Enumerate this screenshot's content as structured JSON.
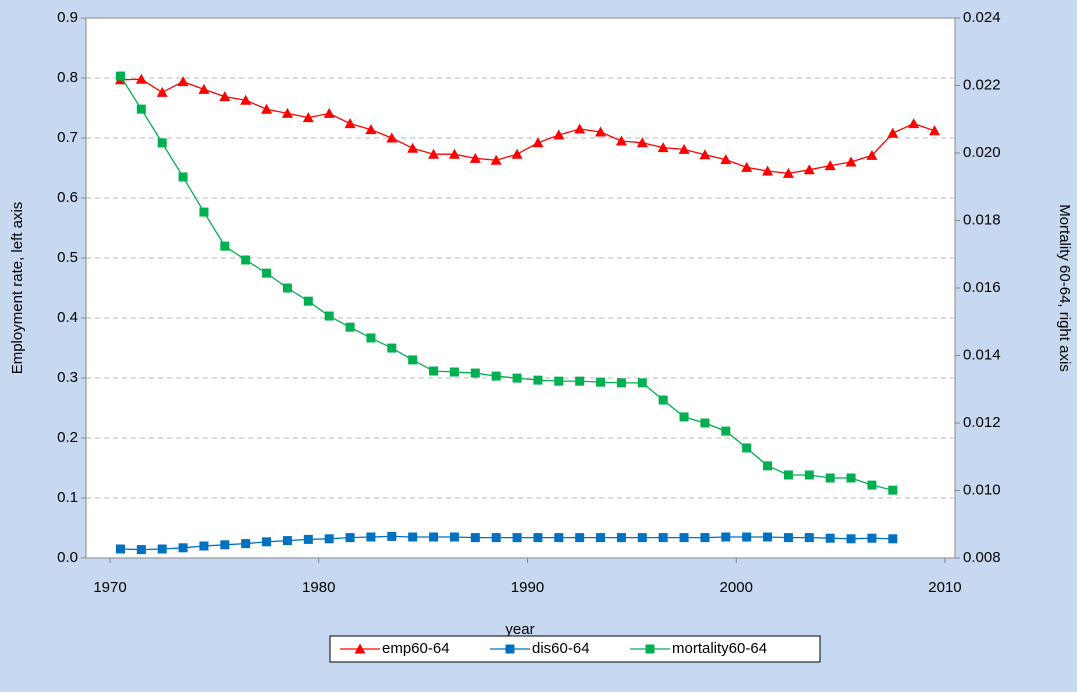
{
  "chart_data": {
    "type": "line",
    "xlabel": "year",
    "ylabel": "Employment rate, left axis",
    "y2label": "Mortality 60-64, right axis",
    "x": [
      1970.5,
      1971.5,
      1972.5,
      1973.5,
      1974.5,
      1975.5,
      1976.5,
      1977.5,
      1978.5,
      1979.5,
      1980.5,
      1981.5,
      1982.5,
      1983.5,
      1984.5,
      1985.5,
      1986.5,
      1987.5,
      1988.5,
      1989.5,
      1990.5,
      1991.5,
      1992.5,
      1993.5,
      1994.5,
      1995.5,
      1996.5,
      1997.5,
      1998.5,
      1999.5,
      2000.5,
      2001.5,
      2002.5,
      2003.5,
      2004.5,
      2005.5,
      2006.5,
      2007.5,
      2008.5,
      2009.5
    ],
    "xlim": [
      1968.85,
      2010.48
    ],
    "xticks": [
      1970,
      1980,
      1990,
      2000,
      2010
    ],
    "ylim": [
      0,
      0.9
    ],
    "yticks": [
      {
        "value": 0,
        "label": "0.0"
      },
      0.1,
      0.2,
      0.3,
      0.4,
      0.5,
      0.6,
      0.7,
      0.8,
      0.9
    ],
    "y2lim": [
      0.008,
      0.024
    ],
    "y2ticks": [
      0.008,
      {
        "value": 0.01,
        "label": "0.010"
      },
      0.012,
      0.014,
      0.016,
      0.018,
      {
        "value": 0.02,
        "label": "0.020"
      },
      0.022,
      0.024
    ],
    "grid": true,
    "legend": "bottom",
    "series": [
      {
        "name": "emp60-64",
        "color": "#ff0000",
        "marker": "triangle",
        "axis": "y",
        "values": [
          0.797,
          0.798,
          0.776,
          0.794,
          0.781,
          0.769,
          0.763,
          0.748,
          0.741,
          0.734,
          0.741,
          0.724,
          0.714,
          0.7,
          0.683,
          0.673,
          0.673,
          0.666,
          0.663,
          0.673,
          0.692,
          0.705,
          0.715,
          0.71,
          0.695,
          0.692,
          0.684,
          0.681,
          0.672,
          0.664,
          0.651,
          0.645,
          0.641,
          0.647,
          0.654,
          0.66,
          0.671,
          0.708,
          0.724,
          0.712
        ]
      },
      {
        "name": "dis60-64",
        "color": "#0070c0",
        "marker": "square",
        "axis": "y",
        "values": [
          0.015,
          0.014,
          0.015,
          0.017,
          0.02,
          0.022,
          0.024,
          0.027,
          0.029,
          0.031,
          0.032,
          0.034,
          0.035,
          0.036,
          0.035,
          0.035,
          0.035,
          0.034,
          0.034,
          0.034,
          0.034,
          0.034,
          0.034,
          0.034,
          0.034,
          0.034,
          0.034,
          0.034,
          0.034,
          0.035,
          0.035,
          0.035,
          0.034,
          0.034,
          0.033,
          0.032,
          0.033,
          0.032,
          null,
          null
        ]
      },
      {
        "name": "mortality60-64",
        "color": "#00b050",
        "marker": "square",
        "axis": "y2",
        "values": [
          0.02228,
          0.0213,
          0.0203,
          0.01929,
          0.01825,
          0.01724,
          0.01683,
          0.01644,
          0.016,
          0.01561,
          0.01517,
          0.01484,
          0.01452,
          0.01422,
          0.01387,
          0.01354,
          0.01351,
          0.01348,
          0.01339,
          0.01333,
          0.01327,
          0.01324,
          0.01324,
          0.01321,
          0.01319,
          0.01319,
          0.01268,
          0.01218,
          0.012,
          0.01176,
          0.01126,
          0.01073,
          0.01046,
          0.01046,
          0.01037,
          0.01037,
          0.01016,
          0.01001,
          null,
          null
        ]
      }
    ]
  }
}
